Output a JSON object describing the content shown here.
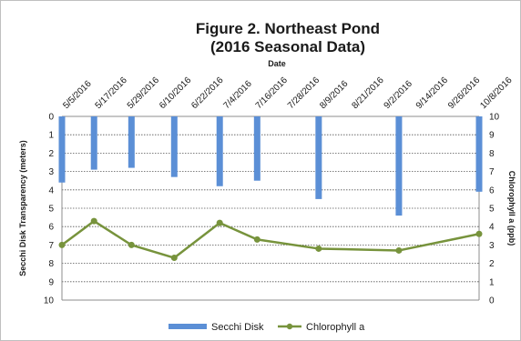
{
  "chart_data": {
    "type": "bar+line",
    "title_line1": "Figure 2. Northeast Pond",
    "title_line2": "(2016 Seasonal Data)",
    "xlabel": "Date",
    "ylabel_left": "Secchi Disk Transparency (meters)",
    "ylabel_right": "Chlorophyll a (ppb)",
    "x_axis_position": "top",
    "left_axis_inverted": true,
    "ylim_left": [
      0,
      10
    ],
    "ylim_right": [
      0,
      10
    ],
    "left_ticks": [
      "0",
      "1",
      "2",
      "3",
      "4",
      "5",
      "6",
      "7",
      "8",
      "9",
      "10"
    ],
    "right_ticks": [
      "10",
      "9",
      "8",
      "7",
      "6",
      "5",
      "4",
      "3",
      "2",
      "1",
      "0"
    ],
    "date_ticks": [
      "5/5/2016",
      "5/17/2016",
      "5/29/2016",
      "6/10/2016",
      "6/22/2016",
      "7/4/2016",
      "7/16/2016",
      "7/28/2016",
      "8/9/2016",
      "8/21/2016",
      "9/2/2016",
      "9/14/2016",
      "9/26/2016",
      "10/8/2016"
    ],
    "x_range": [
      "2016-05-05",
      "2016-10-08"
    ],
    "grid": "horizontal dotted",
    "legend_position": "bottom",
    "series": [
      {
        "name": "Secchi Disk",
        "type": "bar",
        "axis": "left",
        "color": "#5b8fd6",
        "points": [
          {
            "date": "2016-05-05",
            "value": 3.6
          },
          {
            "date": "2016-05-17",
            "value": 2.9
          },
          {
            "date": "2016-05-31",
            "value": 2.8
          },
          {
            "date": "2016-06-16",
            "value": 3.3
          },
          {
            "date": "2016-07-03",
            "value": 3.8
          },
          {
            "date": "2016-07-17",
            "value": 3.5
          },
          {
            "date": "2016-08-09",
            "value": 4.5
          },
          {
            "date": "2016-09-08",
            "value": 5.4
          },
          {
            "date": "2016-10-08",
            "value": 4.1
          }
        ]
      },
      {
        "name": "Chlorophyll a",
        "type": "line",
        "axis": "right",
        "color": "#77933c",
        "points": [
          {
            "date": "2016-05-05",
            "value": 3.0
          },
          {
            "date": "2016-05-17",
            "value": 4.3
          },
          {
            "date": "2016-05-31",
            "value": 3.0
          },
          {
            "date": "2016-06-16",
            "value": 2.3
          },
          {
            "date": "2016-07-03",
            "value": 4.2
          },
          {
            "date": "2016-07-17",
            "value": 3.3
          },
          {
            "date": "2016-08-09",
            "value": 2.8
          },
          {
            "date": "2016-09-08",
            "value": 2.7
          },
          {
            "date": "2016-10-08",
            "value": 3.6
          }
        ]
      }
    ]
  }
}
